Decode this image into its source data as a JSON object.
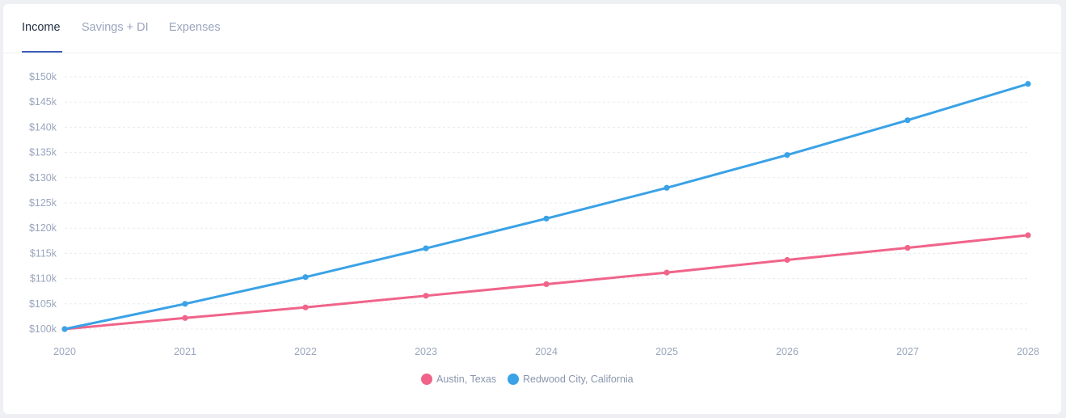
{
  "tabs": [
    {
      "label": "Income",
      "active": true
    },
    {
      "label": "Savings + DI",
      "active": false
    },
    {
      "label": "Expenses",
      "active": false
    }
  ],
  "colors": {
    "austin": "#f0648a",
    "redwood": "#3aa2e6",
    "tick_text": "#9aa6bd",
    "grid": "#e8ebf0",
    "active_tab_underline": "#3d5cb8"
  },
  "chart_data": {
    "type": "line",
    "x": [
      2020,
      2021,
      2022,
      2023,
      2024,
      2025,
      2026,
      2027,
      2028
    ],
    "series": [
      {
        "name": "Austin, Texas",
        "color": "#f0648a",
        "values": [
          100000,
          102200,
          104300,
          106600,
          108900,
          111200,
          113700,
          116100,
          118600
        ]
      },
      {
        "name": "Redwood City, California",
        "color": "#3aa2e6",
        "values": [
          100000,
          105000,
          110300,
          116000,
          121900,
          128000,
          134500,
          141400,
          148600
        ]
      }
    ],
    "y_ticks": [
      {
        "value": 100000,
        "label": "$100k"
      },
      {
        "value": 105000,
        "label": "$105k"
      },
      {
        "value": 110000,
        "label": "$110k"
      },
      {
        "value": 115000,
        "label": "$115k"
      },
      {
        "value": 120000,
        "label": "$120k"
      },
      {
        "value": 125000,
        "label": "$125k"
      },
      {
        "value": 130000,
        "label": "$130k"
      },
      {
        "value": 135000,
        "label": "$135k"
      },
      {
        "value": 140000,
        "label": "$140k"
      },
      {
        "value": 145000,
        "label": "$145k"
      },
      {
        "value": 150000,
        "label": "$150k"
      }
    ],
    "x_tick_labels": [
      "2020",
      "2021",
      "2022",
      "2023",
      "2024",
      "2025",
      "2026",
      "2027",
      "2028"
    ],
    "ylim": [
      100000,
      150000
    ],
    "xlim": [
      2020,
      2028
    ],
    "grid": true,
    "legend_position": "bottom-center",
    "title": "",
    "xlabel": "",
    "ylabel": ""
  }
}
